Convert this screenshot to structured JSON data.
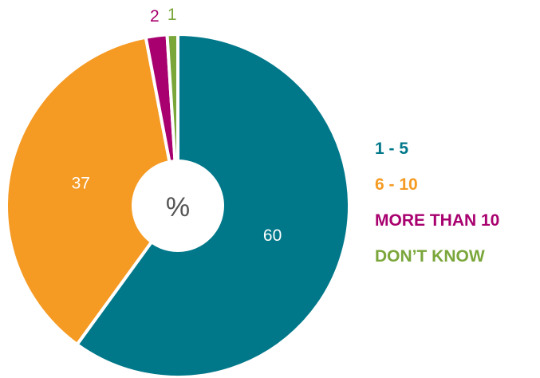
{
  "chart_data": {
    "type": "pie",
    "center_label": "%",
    "slices": [
      {
        "label": "1 - 5",
        "value": 60,
        "color": "#00788a"
      },
      {
        "label": "6 - 10",
        "value": 37,
        "color": "#f59a23"
      },
      {
        "label": "MORE THAN 10",
        "value": 2,
        "color": "#a8006e"
      },
      {
        "label": "DON’T KNOW",
        "value": 1,
        "color": "#7aa63a"
      }
    ],
    "legend_position": "right"
  }
}
